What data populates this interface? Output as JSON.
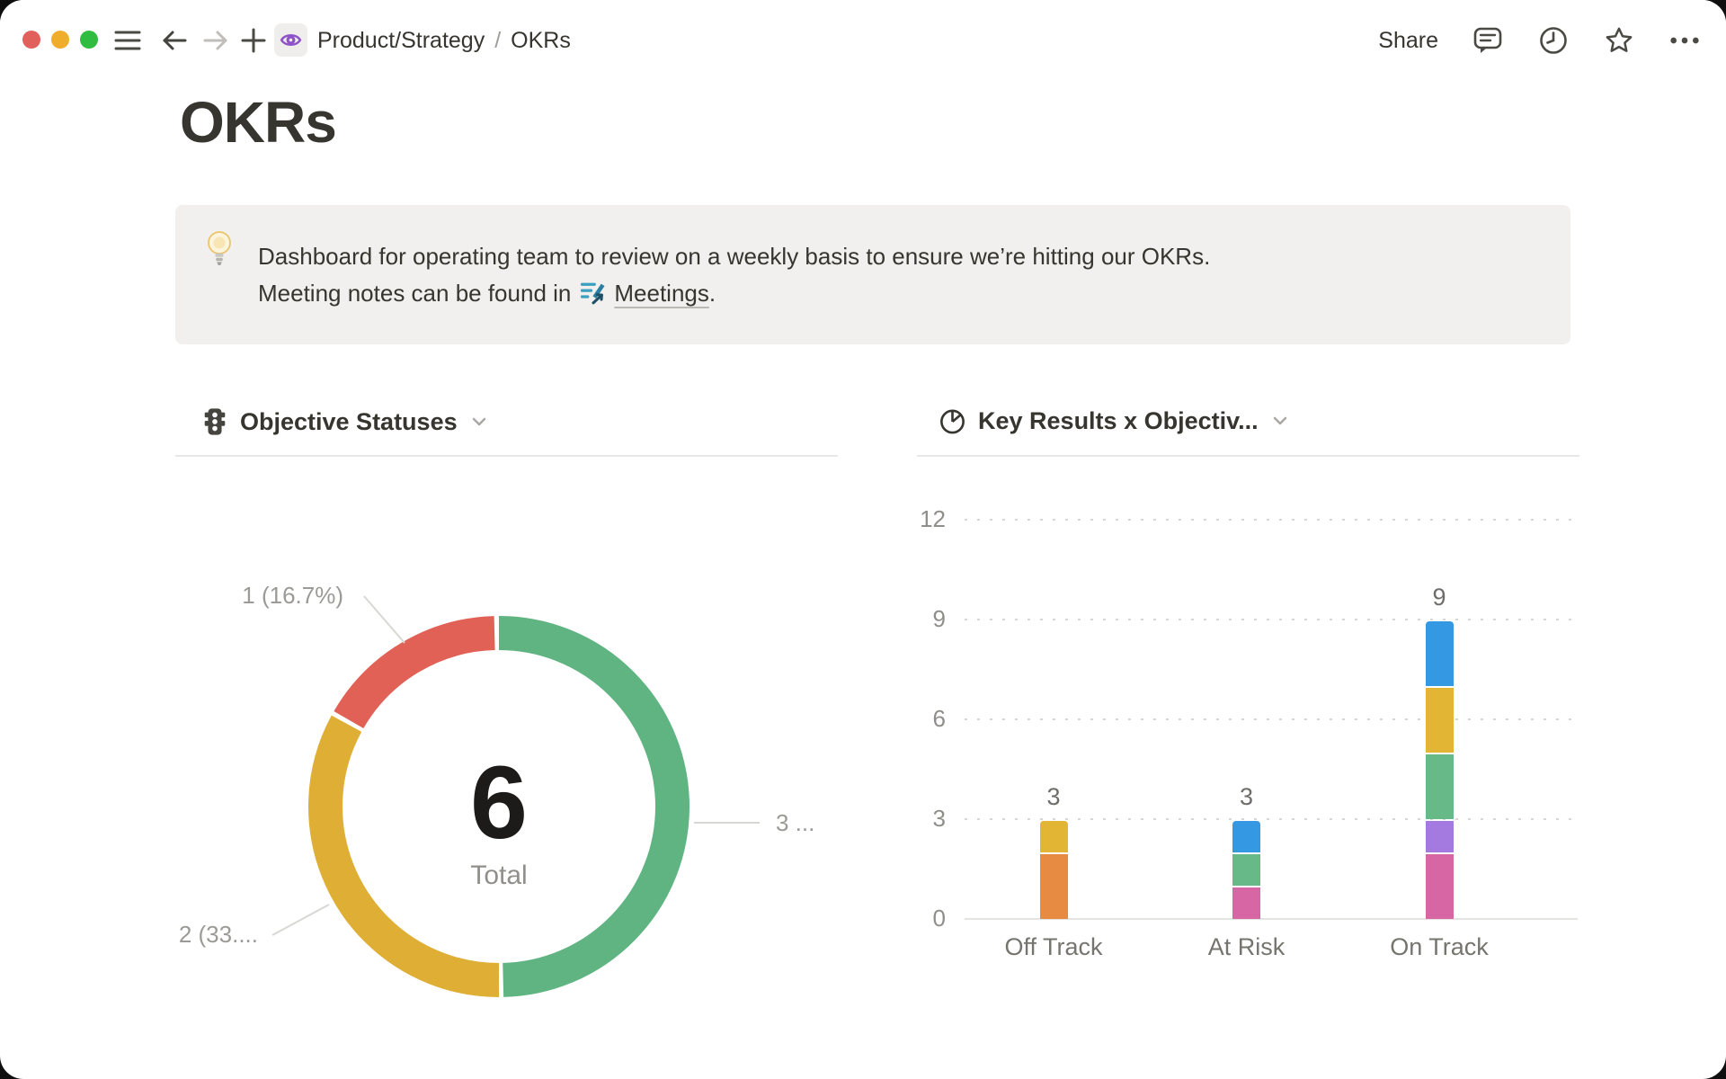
{
  "titlebar": {
    "breadcrumb": {
      "parent": "Product/Strategy",
      "separator": "/",
      "current": "OKRs"
    },
    "share_label": "Share",
    "icons": [
      "comments-bubble",
      "history-clock",
      "favorite-star",
      "more-ellipsis"
    ],
    "traffic_light_colors": {
      "red": "#e2605b",
      "yellow": "#f0ad2c",
      "green": "#2fbd41"
    },
    "page_icon": "eye",
    "page_icon_color": "#8f53c8"
  },
  "page": {
    "title": "OKRs",
    "callout": {
      "icon": "lightbulb",
      "line1": "Dashboard for operating team to review on a weekly basis to ensure we’re hitting our OKRs.",
      "line2_prefix": "Meeting notes can be found in",
      "link_icon": "meeting-notes-page",
      "line2_link": "Meetings",
      "line2_suffix": "."
    }
  },
  "charts": {
    "left": {
      "icon": "traffic-light",
      "title": "Objective Statuses"
    },
    "right": {
      "icon": "pie-chart",
      "title": "Key Results x Objectiv..."
    }
  },
  "chart_data": [
    {
      "type": "pie",
      "subtype": "donut",
      "title": "Objective Statuses",
      "center_value": "6",
      "center_label": "Total",
      "slices": [
        {
          "display_label": "1 (16.7%)",
          "value": 1,
          "percent": 16.7,
          "color": "#e16157"
        },
        {
          "display_label": "2 (33....",
          "value": 2,
          "percent": 33.3,
          "color": "#dfae35"
        },
        {
          "display_label": "3 ...",
          "value": 3,
          "percent": 50.0,
          "color": "#5fb482"
        }
      ]
    },
    {
      "type": "bar",
      "stacked": true,
      "title": "Key Results x Objectiv...",
      "categories": [
        "Off Track",
        "At Risk",
        "On Track"
      ],
      "bar_totals": [
        3,
        3,
        9
      ],
      "ylim": [
        0,
        12
      ],
      "yticks": [
        0,
        3,
        6,
        9,
        12
      ],
      "grid": "dotted-horizontal",
      "legend": "none",
      "bars": [
        {
          "category": "Off Track",
          "total": 3,
          "segments": [
            {
              "color": "#e78b43",
              "value": 2
            },
            {
              "color": "#e3b534",
              "value": 1
            }
          ]
        },
        {
          "category": "At Risk",
          "total": 3,
          "segments": [
            {
              "color": "#d766a4",
              "value": 1
            },
            {
              "color": "#67ba88",
              "value": 1
            },
            {
              "color": "#3598e2",
              "value": 1
            }
          ]
        },
        {
          "category": "On Track",
          "total": 9,
          "segments": [
            {
              "color": "#d766a4",
              "value": 2
            },
            {
              "color": "#a47ae1",
              "value": 1
            },
            {
              "color": "#67ba88",
              "value": 2
            },
            {
              "color": "#e3b534",
              "value": 2
            },
            {
              "color": "#3598e2",
              "value": 2
            }
          ]
        }
      ]
    }
  ]
}
